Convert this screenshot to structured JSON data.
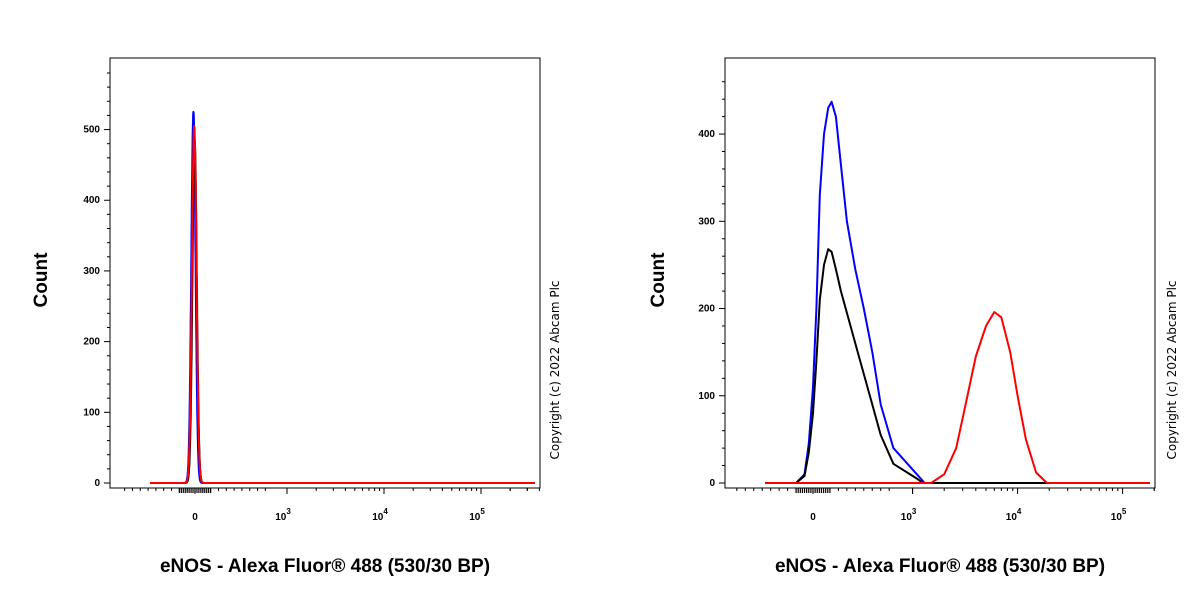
{
  "chart_data": [
    {
      "type": "line",
      "panel": "left",
      "xlabel": "eNOS - Alexa Fluor® 488 (530/30 BP)",
      "ylabel": "Count",
      "x_scale": "biexponential",
      "ylim": [
        0,
        580
      ],
      "yticks": [
        {
          "value": 0,
          "label": "0"
        },
        {
          "value": 100,
          "label": "100"
        },
        {
          "value": 200,
          "label": "200"
        },
        {
          "value": 300,
          "label": "300"
        },
        {
          "value": 400,
          "label": "400"
        },
        {
          "value": 500,
          "label": "500"
        }
      ],
      "xticks": [
        {
          "value": 0,
          "base": "0",
          "exp": ""
        },
        {
          "value": 1000,
          "base": "10",
          "exp": "3"
        },
        {
          "value": 10000,
          "base": "10",
          "exp": "4"
        },
        {
          "value": 100000,
          "base": "10",
          "exp": "5"
        }
      ],
      "series": [
        {
          "color": "#0000ff",
          "peak_x": -20,
          "peak_y": 525,
          "width": 58
        },
        {
          "color": "#000000",
          "peak_x": -5,
          "peak_y": 485,
          "width": 60
        },
        {
          "color": "#ff0000",
          "peak_x": -10,
          "peak_y": 505,
          "width": 62
        }
      ],
      "copyright": "Copyright (c) 2022 Abcam Plc"
    },
    {
      "type": "line",
      "panel": "right",
      "xlabel": "eNOS - Alexa Fluor® 488 (530/30 BP)",
      "ylabel": "Count",
      "x_scale": "biexponential",
      "ylim": [
        0,
        470
      ],
      "yticks": [
        {
          "value": 0,
          "label": "0"
        },
        {
          "value": 100,
          "label": "100"
        },
        {
          "value": 200,
          "label": "200"
        },
        {
          "value": 300,
          "label": "300"
        },
        {
          "value": 400,
          "label": "400"
        }
      ],
      "xticks": [
        {
          "value": 0,
          "base": "0",
          "exp": ""
        },
        {
          "value": 1000,
          "base": "10",
          "exp": "3"
        },
        {
          "value": 10000,
          "base": "10",
          "exp": "4"
        },
        {
          "value": 100000,
          "base": "10",
          "exp": "5"
        }
      ],
      "series": [
        {
          "color": "#0000ff",
          "points": [
            [
              -200,
              0
            ],
            [
              -100,
              10
            ],
            [
              -50,
              45
            ],
            [
              0,
              110
            ],
            [
              40,
              200
            ],
            [
              80,
              330
            ],
            [
              130,
              400
            ],
            [
              180,
              430
            ],
            [
              220,
              437
            ],
            [
              270,
              420
            ],
            [
              330,
              365
            ],
            [
              400,
              300
            ],
            [
              500,
              245
            ],
            [
              600,
              200
            ],
            [
              700,
              150
            ],
            [
              800,
              90
            ],
            [
              950,
              40
            ],
            [
              1100,
              10
            ],
            [
              1300,
              0
            ]
          ]
        },
        {
          "color": "#000000",
          "points": [
            [
              -200,
              0
            ],
            [
              -100,
              8
            ],
            [
              -50,
              35
            ],
            [
              0,
              80
            ],
            [
              40,
              140
            ],
            [
              80,
              210
            ],
            [
              130,
              250
            ],
            [
              180,
              268
            ],
            [
              220,
              265
            ],
            [
              270,
              245
            ],
            [
              330,
              220
            ],
            [
              400,
              195
            ],
            [
              500,
              160
            ],
            [
              600,
              125
            ],
            [
              700,
              90
            ],
            [
              800,
              55
            ],
            [
              950,
              22
            ],
            [
              1100,
              5
            ],
            [
              1250,
              0
            ]
          ]
        },
        {
          "color": "#ff0000",
          "points": [
            [
              1500,
              0
            ],
            [
              2000,
              10
            ],
            [
              2600,
              40
            ],
            [
              3200,
              90
            ],
            [
              4000,
              145
            ],
            [
              5000,
              180
            ],
            [
              6000,
              196
            ],
            [
              7000,
              190
            ],
            [
              8500,
              150
            ],
            [
              10000,
              100
            ],
            [
              12000,
              50
            ],
            [
              15000,
              12
            ],
            [
              19000,
              0
            ]
          ]
        }
      ],
      "copyright": "Copyright (c) 2022 Abcam Plc"
    }
  ]
}
